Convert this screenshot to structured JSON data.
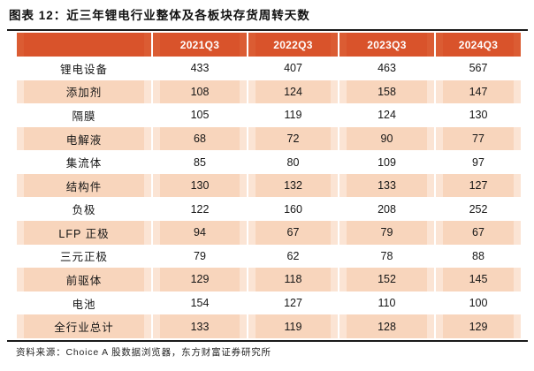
{
  "figure": {
    "title": "图表 12：近三年锂电行业整体及各板块存货周转天数",
    "source": "资料来源：Choice A 股数据浏览器，东方财富证券研究所"
  },
  "colors": {
    "header_bg": "#d9532b",
    "header_text": "#ffffff",
    "alt_row_bg": "#f8d5bc",
    "alt_row_edge": "#fbe4d4",
    "rule": "#1a1a1a"
  },
  "chart_data": {
    "type": "table",
    "figure_label": "图表 12",
    "title": "近三年锂电行业整体及各板块存货周转天数",
    "columns": [
      "",
      "2021Q3",
      "2022Q3",
      "2023Q3",
      "2024Q3"
    ],
    "rows": [
      {
        "label": "锂电设备",
        "values": [
          433,
          407,
          463,
          567
        ]
      },
      {
        "label": "添加剂",
        "values": [
          108,
          124,
          158,
          147
        ]
      },
      {
        "label": "隔膜",
        "values": [
          105,
          119,
          124,
          130
        ]
      },
      {
        "label": "电解液",
        "values": [
          68,
          72,
          90,
          77
        ]
      },
      {
        "label": "集流体",
        "values": [
          85,
          80,
          109,
          97
        ]
      },
      {
        "label": "结构件",
        "values": [
          130,
          132,
          133,
          127
        ]
      },
      {
        "label": "负极",
        "values": [
          122,
          160,
          208,
          252
        ]
      },
      {
        "label": "LFP 正极",
        "values": [
          94,
          67,
          79,
          67
        ]
      },
      {
        "label": "三元正极",
        "values": [
          79,
          62,
          78,
          88
        ]
      },
      {
        "label": "前驱体",
        "values": [
          129,
          118,
          152,
          145
        ]
      },
      {
        "label": "电池",
        "values": [
          154,
          127,
          110,
          100
        ]
      },
      {
        "label": "全行业总计",
        "values": [
          133,
          119,
          128,
          129
        ]
      }
    ],
    "legend": null,
    "notes": "shaded alternate rows; values are inventory turnover days"
  }
}
